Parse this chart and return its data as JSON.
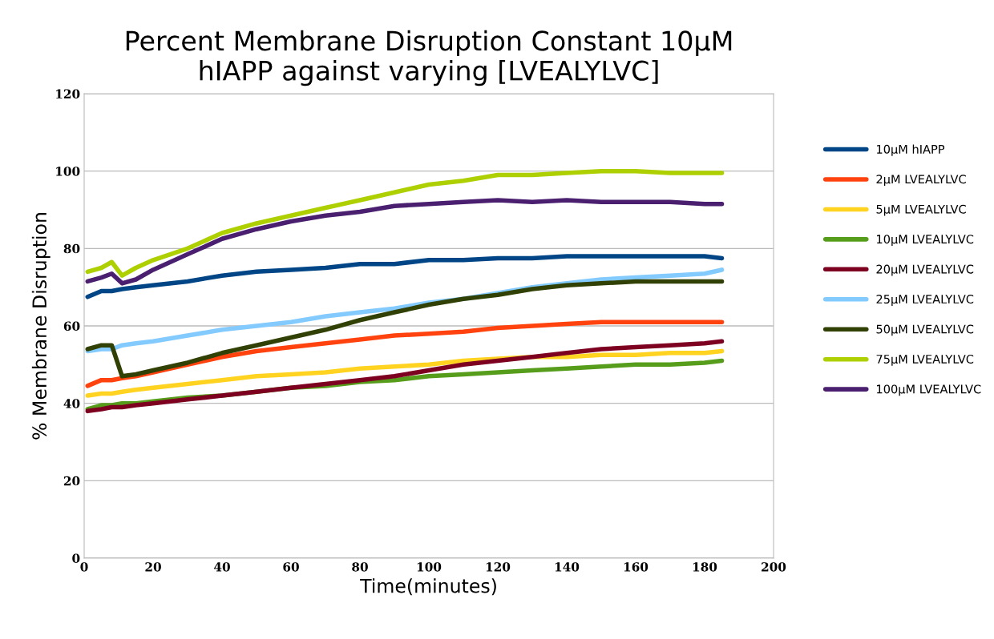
{
  "chart_data": {
    "type": "line",
    "title": "Percent Membrane Disruption Constant 10µM\nhIAPP against varying [LVEALYLVC]",
    "xlabel": "Time(minutes)",
    "ylabel": "% Membrane Disruption",
    "x": [
      1,
      5,
      8,
      11,
      15,
      20,
      30,
      40,
      50,
      60,
      70,
      80,
      90,
      100,
      110,
      120,
      130,
      140,
      150,
      160,
      170,
      180,
      185
    ],
    "series": [
      {
        "name": "10µM hIAPP",
        "color": "#004586",
        "values": [
          67.5,
          69,
          69,
          69.5,
          70,
          70.5,
          71.5,
          73,
          74,
          74.5,
          75,
          76,
          76,
          77,
          77,
          77.5,
          77.5,
          78,
          78,
          78,
          78,
          78,
          77.5
        ]
      },
      {
        "name": "2µM LVEALYLVC",
        "color": "#ff420e",
        "values": [
          44.5,
          46,
          46,
          46.5,
          47,
          48,
          50,
          52,
          53.5,
          54.5,
          55.5,
          56.5,
          57.5,
          58,
          58.5,
          59.5,
          60,
          60.5,
          61,
          61,
          61,
          61,
          61
        ]
      },
      {
        "name": "5µM LVEALYLVC",
        "color": "#ffd320",
        "values": [
          42,
          42.5,
          42.5,
          43,
          43.5,
          44,
          45,
          46,
          47,
          47.5,
          48,
          49,
          49.5,
          50,
          51,
          51.5,
          52,
          52,
          52.5,
          52.5,
          53,
          53,
          53.5
        ]
      },
      {
        "name": "10µM LVEALYLVC",
        "color": "#579d1c",
        "values": [
          38.5,
          39.5,
          39.5,
          40,
          40,
          40.5,
          41.5,
          42,
          43,
          44,
          44.5,
          45.5,
          46,
          47,
          47.5,
          48,
          48.5,
          49,
          49.5,
          50,
          50,
          50.5,
          51
        ]
      },
      {
        "name": "20µM LVEALYLVC",
        "color": "#7e0021",
        "values": [
          38,
          38.5,
          39,
          39,
          39.5,
          40,
          41,
          42,
          43,
          44,
          45,
          46,
          47,
          48.5,
          50,
          51,
          52,
          53,
          54,
          54.5,
          55,
          55.5,
          56
        ]
      },
      {
        "name": "25µM LVEALYLVC",
        "color": "#83caff",
        "values": [
          53.5,
          54,
          54,
          55,
          55.5,
          56,
          57.5,
          59,
          60,
          61,
          62.5,
          63.5,
          64.5,
          66,
          67,
          68.5,
          70,
          71,
          72,
          72.5,
          73,
          73.5,
          74.5
        ]
      },
      {
        "name": "50µM LVEALYLVC",
        "color": "#314004",
        "values": [
          54,
          55,
          55,
          47,
          47.5,
          48.5,
          50.5,
          53,
          55,
          57,
          59,
          61.5,
          63.5,
          65.5,
          67,
          68,
          69.5,
          70.5,
          71,
          71.5,
          71.5,
          71.5,
          71.5
        ]
      },
      {
        "name": "75µM LVEALYLVC",
        "color": "#aecf00",
        "values": [
          74,
          75,
          76.5,
          73,
          75,
          77,
          80,
          84,
          86.5,
          88.5,
          90.5,
          92.5,
          94.5,
          96.5,
          97.5,
          99,
          99,
          99.5,
          100,
          100,
          99.5,
          99.5,
          99.5
        ]
      },
      {
        "name": "100µM LVEALYLVC",
        "color": "#4b1f6f",
        "values": [
          71.5,
          72.5,
          73.5,
          71,
          72,
          74.5,
          78.5,
          82.5,
          85,
          87,
          88.5,
          89.5,
          91,
          91.5,
          92,
          92.5,
          92,
          92.5,
          92,
          92,
          92,
          91.5,
          91.5
        ]
      }
    ],
    "xlim": [
      0,
      200
    ],
    "xticks": [
      0,
      20,
      40,
      60,
      80,
      100,
      120,
      140,
      160,
      180,
      200
    ],
    "ylim": [
      0,
      120
    ],
    "yticks": [
      0,
      20,
      40,
      60,
      80,
      100,
      120
    ],
    "grid": "y",
    "legend": "right",
    "marker": "none",
    "line_style": "solid"
  }
}
